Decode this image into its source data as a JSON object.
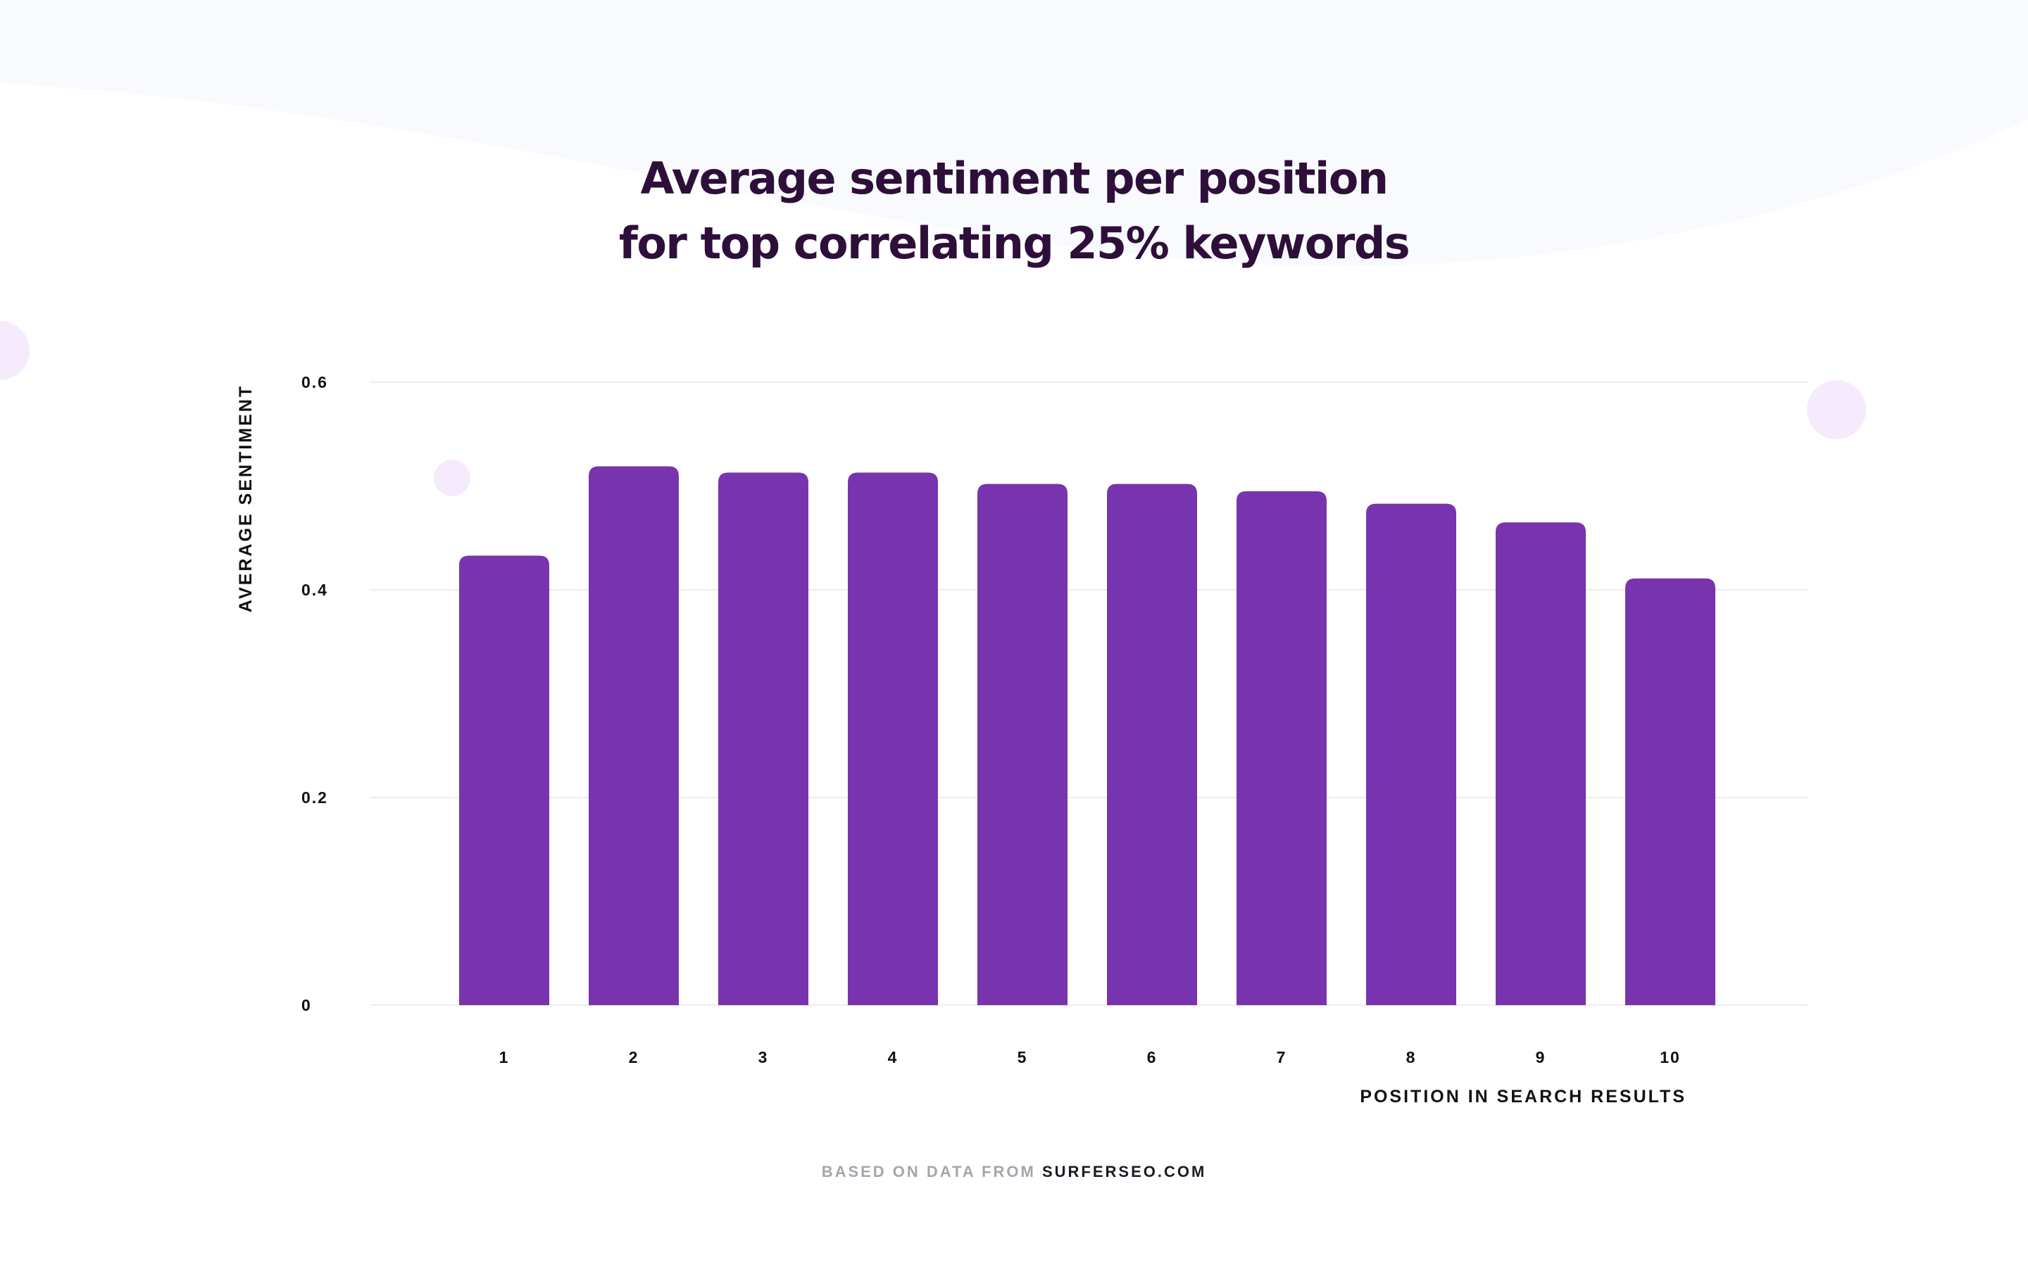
{
  "title": {
    "line1": "Average sentiment per position",
    "line2": "for top correlating 25% keywords"
  },
  "colors": {
    "bar": "#7834ae",
    "title": "#2e0f3a",
    "grid": "#ececef",
    "background_wave": "#f9fafd",
    "decor_circle": "#f5ebfc"
  },
  "footer": {
    "prefix": "BASED ON DATA FROM",
    "source": "SURFERSEO.COM"
  },
  "chart_data": {
    "type": "bar",
    "title": "Average sentiment per position for top correlating 25% keywords",
    "xlabel": "POSITION IN SEARCH RESULTS",
    "ylabel": "AVERAGE SENTIMENT",
    "categories": [
      "1",
      "2",
      "3",
      "4",
      "5",
      "6",
      "7",
      "8",
      "9",
      "10"
    ],
    "values": [
      0.433,
      0.519,
      0.513,
      0.513,
      0.502,
      0.502,
      0.495,
      0.483,
      0.465,
      0.411
    ],
    "ylim": [
      0,
      0.6
    ],
    "yticks": [
      0,
      0.2,
      0.4,
      0.6
    ],
    "ytick_labels": [
      "0",
      "0.2",
      "0.4",
      "0.6"
    ],
    "grid": true,
    "legend": "none"
  }
}
